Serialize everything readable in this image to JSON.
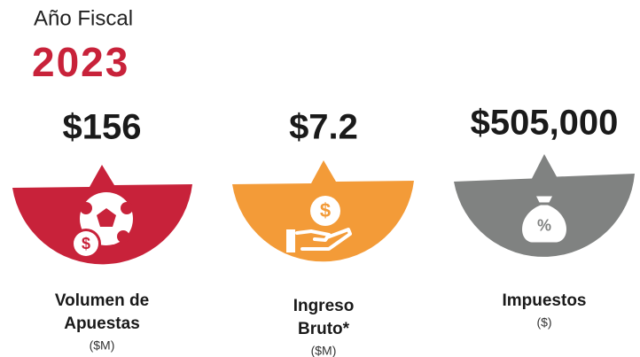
{
  "header": {
    "label": "Año Fiscal",
    "year": "2023"
  },
  "cards": [
    {
      "value": "$156",
      "label": [
        "Volumen de",
        "Apuestas"
      ],
      "unit": "($M)",
      "icon_text": "$",
      "color": "#c8223a"
    },
    {
      "value": "$7.2",
      "label": [
        "Ingreso",
        "Bruto*"
      ],
      "unit": "($M)",
      "icon_text": "$",
      "color": "#f39b38"
    },
    {
      "value": "$505,000",
      "label": [
        "Impuestos"
      ],
      "unit": "($)",
      "icon_text": "%",
      "color": "#808281"
    }
  ]
}
